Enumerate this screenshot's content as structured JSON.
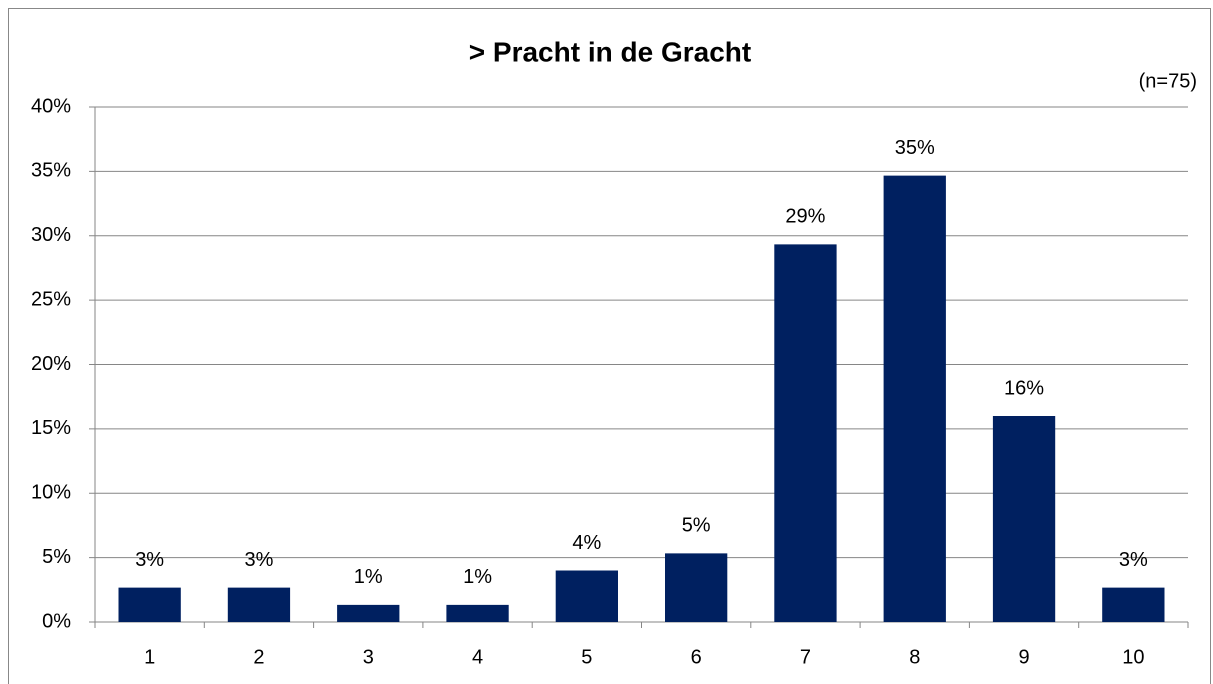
{
  "chart_data": {
    "type": "bar",
    "title": "> Pracht in de Gracht",
    "annotation": "(n=75)",
    "categories": [
      "1",
      "2",
      "3",
      "4",
      "5",
      "6",
      "7",
      "8",
      "9",
      "10"
    ],
    "values": [
      2.67,
      2.67,
      1.33,
      1.33,
      4,
      5.33,
      29.33,
      34.67,
      16,
      2.67
    ],
    "value_labels": [
      "3%",
      "3%",
      "1%",
      "1%",
      "4%",
      "5%",
      "29%",
      "35%",
      "16%",
      "3%"
    ],
    "color": "#002060",
    "ylim": [
      0,
      40
    ],
    "yticks": [
      {
        "value": 0,
        "label": "0%"
      },
      {
        "value": 5,
        "label": "5%"
      },
      {
        "value": 10,
        "label": "10%"
      },
      {
        "value": 15,
        "label": "15%"
      },
      {
        "value": 20,
        "label": "20%"
      },
      {
        "value": 25,
        "label": "25%"
      },
      {
        "value": 30,
        "label": "30%"
      },
      {
        "value": 35,
        "label": "35%"
      },
      {
        "value": 40,
        "label": "40%"
      }
    ],
    "grid": true
  }
}
